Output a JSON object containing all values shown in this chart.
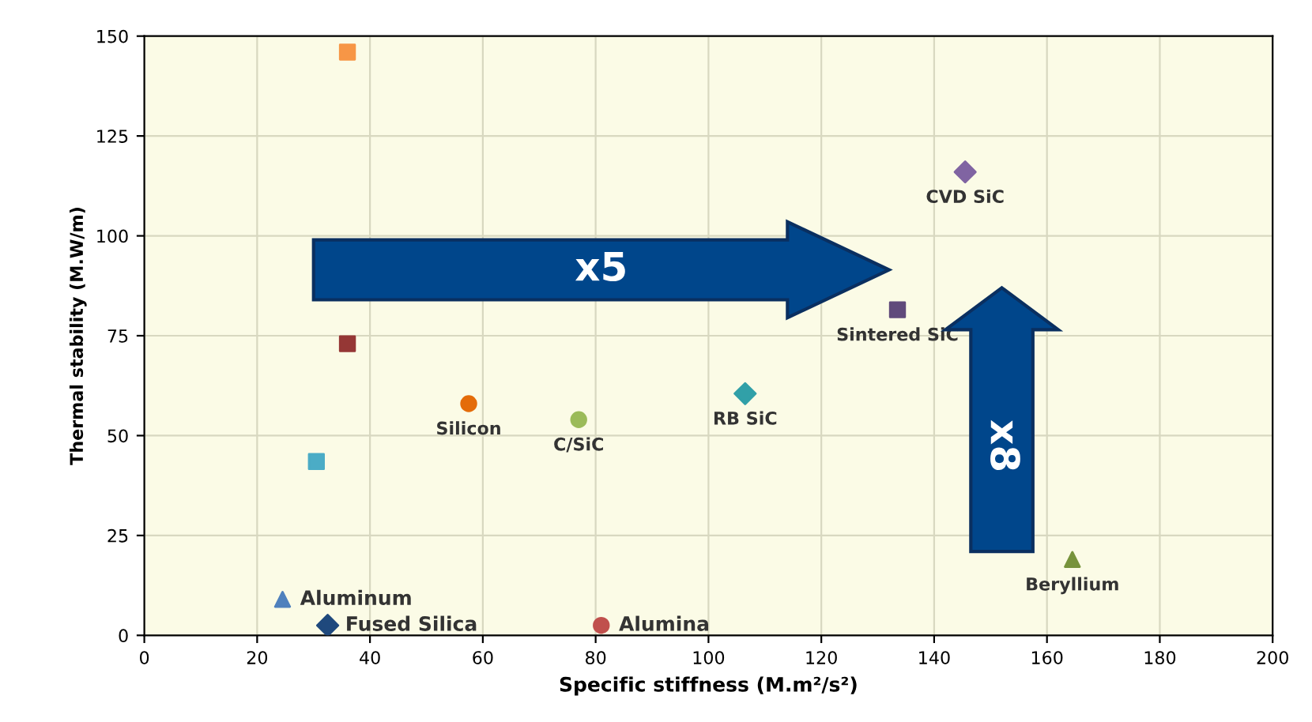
{
  "chart_data": {
    "type": "scatter",
    "xlabel": "Specific stiffness (M.m²/s²)",
    "ylabel": "Thermal stability (M.W/m)",
    "xlim": [
      0,
      200
    ],
    "xticks": [
      0,
      20,
      40,
      60,
      80,
      100,
      120,
      140,
      160,
      180,
      200
    ],
    "ylim": [
      0,
      150
    ],
    "yticks": [
      0,
      25,
      50,
      75,
      100,
      125,
      150
    ],
    "grid": true,
    "legend": false,
    "annotations": [
      "x5",
      "x8"
    ],
    "series": [
      {
        "x": [
          36
        ],
        "values": [
          146
        ],
        "color": "#f79646",
        "marker": "square"
      },
      {
        "x": [
          36
        ],
        "values": [
          73
        ],
        "color": "#953735",
        "marker": "square"
      },
      {
        "name": "Silicon",
        "x": [
          57.5
        ],
        "values": [
          58
        ],
        "color": "#e46c0a",
        "marker": "circle"
      },
      {
        "name": "C/SiC",
        "x": [
          77
        ],
        "values": [
          54
        ],
        "color": "#9bbb59",
        "marker": "circle"
      },
      {
        "x": [
          30.5
        ],
        "values": [
          43.5
        ],
        "color": "#4bacc6",
        "marker": "square"
      },
      {
        "name": "Aluminum",
        "x": [
          24.5
        ],
        "values": [
          9
        ],
        "color": "#4f81bd",
        "marker": "triangle"
      },
      {
        "name": "Fused Silica",
        "x": [
          32.5
        ],
        "values": [
          2.5
        ],
        "color": "#1f497d",
        "marker": "diamond"
      },
      {
        "name": "Alumina",
        "x": [
          81
        ],
        "values": [
          2.5
        ],
        "color": "#c0504d",
        "marker": "circle"
      },
      {
        "name": "RB SiC",
        "x": [
          106.5
        ],
        "values": [
          60.5
        ],
        "color": "#31a0a8",
        "marker": "diamond"
      },
      {
        "name": "Sintered SiC",
        "x": [
          133.5
        ],
        "values": [
          81.5
        ],
        "color": "#604a7b",
        "marker": "square"
      },
      {
        "name": "CVD SiC",
        "x": [
          145.5
        ],
        "values": [
          116
        ],
        "color": "#8064a2",
        "marker": "diamond"
      },
      {
        "name": "Beryllium",
        "x": [
          164.5
        ],
        "values": [
          19
        ],
        "color": "#77933c",
        "marker": "triangle"
      }
    ]
  }
}
